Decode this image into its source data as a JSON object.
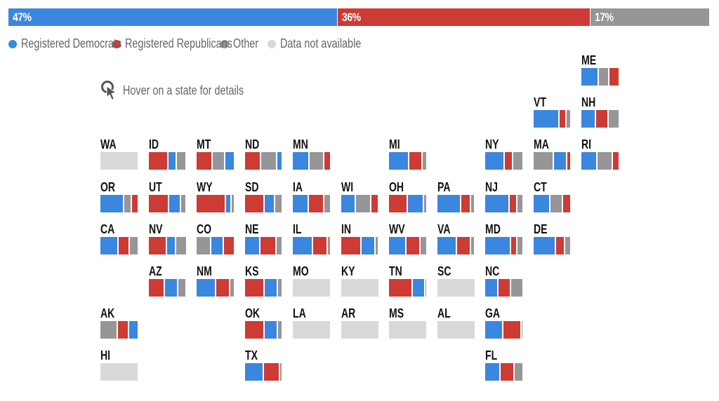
{
  "colors": {
    "democrats": "#3b86de",
    "republicans": "#cc3b34",
    "other": "#969696",
    "not_available": "#d9d9d9"
  },
  "national": [
    {
      "party": "democrats",
      "value": 47,
      "label": "47%"
    },
    {
      "party": "republicans",
      "value": 36,
      "label": "36%"
    },
    {
      "party": "other",
      "value": 17,
      "label": "17%"
    }
  ],
  "legend": [
    {
      "key": "democrats",
      "label": "Registered Democrats"
    },
    {
      "key": "republicans",
      "label": "Registered Republicans"
    },
    {
      "key": "other",
      "label": "Other"
    },
    {
      "key": "not_available",
      "label": "Data not available"
    }
  ],
  "hint": {
    "icon": "cursor-click-icon",
    "label": "Hover on a state for details"
  },
  "chart_data": {
    "type": "bar",
    "title": "",
    "subtype": "stacked-bar tile grid map",
    "series_names": [
      "Registered Democrats",
      "Registered Republicans",
      "Other"
    ],
    "national_totals": {
      "democrats": 47,
      "republicans": 36,
      "other": 17
    },
    "states": [
      {
        "abbr": "ME",
        "row": 0,
        "col": 10,
        "d": 48,
        "r": 24,
        "o": 28
      },
      {
        "abbr": "VT",
        "row": 1,
        "col": 9,
        "d": 70,
        "r": 20,
        "o": 10
      },
      {
        "abbr": "NH",
        "row": 1,
        "col": 10,
        "d": 39,
        "r": 35,
        "o": 26
      },
      {
        "abbr": "WA",
        "row": 2,
        "col": 0,
        "na": true
      },
      {
        "abbr": "ID",
        "row": 2,
        "col": 1,
        "d": 23,
        "r": 54,
        "o": 23
      },
      {
        "abbr": "MT",
        "row": 2,
        "col": 2,
        "d": 22,
        "r": 43,
        "o": 35
      },
      {
        "abbr": "ND",
        "row": 2,
        "col": 3,
        "d": 12,
        "r": 44,
        "o": 44
      },
      {
        "abbr": "MN",
        "row": 2,
        "col": 4,
        "d": 45,
        "r": 16,
        "o": 39
      },
      {
        "abbr": "MI",
        "row": 2,
        "col": 6,
        "d": 54,
        "r": 36,
        "o": 10
      },
      {
        "abbr": "NY",
        "row": 2,
        "col": 8,
        "d": 52,
        "r": 24,
        "o": 24
      },
      {
        "abbr": "MA",
        "row": 2,
        "col": 9,
        "d": 35,
        "r": 9,
        "o": 56
      },
      {
        "abbr": "RI",
        "row": 2,
        "col": 10,
        "d": 44,
        "r": 16,
        "o": 40
      },
      {
        "abbr": "OR",
        "row": 3,
        "col": 0,
        "d": 64,
        "r": 16,
        "o": 20
      },
      {
        "abbr": "UT",
        "row": 3,
        "col": 1,
        "d": 32,
        "r": 56,
        "o": 12
      },
      {
        "abbr": "WY",
        "row": 3,
        "col": 2,
        "d": 15,
        "r": 79,
        "o": 6
      },
      {
        "abbr": "SD",
        "row": 3,
        "col": 3,
        "d": 28,
        "r": 54,
        "o": 18
      },
      {
        "abbr": "IA",
        "row": 3,
        "col": 4,
        "d": 43,
        "r": 41,
        "o": 16
      },
      {
        "abbr": "WI",
        "row": 3,
        "col": 5,
        "d": 41,
        "r": 18,
        "o": 41
      },
      {
        "abbr": "OH",
        "row": 3,
        "col": 6,
        "d": 44,
        "r": 50,
        "o": 6
      },
      {
        "abbr": "PA",
        "row": 3,
        "col": 7,
        "d": 66,
        "r": 26,
        "o": 8
      },
      {
        "abbr": "NJ",
        "row": 3,
        "col": 8,
        "d": 66,
        "r": 20,
        "o": 14
      },
      {
        "abbr": "CT",
        "row": 3,
        "col": 9,
        "d": 47,
        "r": 20,
        "o": 33
      },
      {
        "abbr": "CA",
        "row": 4,
        "col": 0,
        "d": 49,
        "r": 31,
        "o": 20
      },
      {
        "abbr": "NV",
        "row": 4,
        "col": 1,
        "d": 25,
        "r": 50,
        "o": 25
      },
      {
        "abbr": "CO",
        "row": 4,
        "col": 2,
        "d": 34,
        "r": 26,
        "o": 40
      },
      {
        "abbr": "NE",
        "row": 4,
        "col": 3,
        "d": 43,
        "r": 43,
        "o": 14
      },
      {
        "abbr": "IL",
        "row": 4,
        "col": 4,
        "d": 55,
        "r": 39,
        "o": 6
      },
      {
        "abbr": "IN",
        "row": 4,
        "col": 5,
        "d": 38,
        "r": 56,
        "o": 6
      },
      {
        "abbr": "WV",
        "row": 4,
        "col": 6,
        "d": 47,
        "r": 37,
        "o": 16
      },
      {
        "abbr": "VA",
        "row": 4,
        "col": 7,
        "d": 53,
        "r": 39,
        "o": 8
      },
      {
        "abbr": "MD",
        "row": 4,
        "col": 8,
        "d": 69,
        "r": 17,
        "o": 14
      },
      {
        "abbr": "DE",
        "row": 4,
        "col": 9,
        "d": 62,
        "r": 24,
        "o": 14
      },
      {
        "abbr": "AZ",
        "row": 5,
        "col": 1,
        "d": 35,
        "r": 45,
        "o": 20
      },
      {
        "abbr": "NM",
        "row": 5,
        "col": 2,
        "d": 53,
        "r": 37,
        "o": 10
      },
      {
        "abbr": "KS",
        "row": 5,
        "col": 3,
        "d": 37,
        "r": 53,
        "o": 10
      },
      {
        "abbr": "MO",
        "row": 5,
        "col": 4,
        "na": true
      },
      {
        "abbr": "KY",
        "row": 5,
        "col": 5,
        "na": true
      },
      {
        "abbr": "TN",
        "row": 5,
        "col": 6,
        "d": 34,
        "r": 64,
        "o": 2
      },
      {
        "abbr": "SC",
        "row": 5,
        "col": 7,
        "na": true
      },
      {
        "abbr": "NC",
        "row": 5,
        "col": 8,
        "d": 36,
        "r": 34,
        "o": 30
      },
      {
        "abbr": "AK",
        "row": 6,
        "col": 0,
        "d": 23,
        "r": 29,
        "o": 48
      },
      {
        "abbr": "OK",
        "row": 6,
        "col": 3,
        "d": 37,
        "r": 53,
        "o": 10
      },
      {
        "abbr": "LA",
        "row": 6,
        "col": 4,
        "na": true
      },
      {
        "abbr": "AR",
        "row": 6,
        "col": 5,
        "na": true
      },
      {
        "abbr": "MS",
        "row": 6,
        "col": 6,
        "na": true
      },
      {
        "abbr": "AL",
        "row": 6,
        "col": 7,
        "na": true
      },
      {
        "abbr": "GA",
        "row": 6,
        "col": 8,
        "d": 49,
        "r": 49,
        "o": 2
      },
      {
        "abbr": "HI",
        "row": 7,
        "col": 0,
        "na": true
      },
      {
        "abbr": "TX",
        "row": 7,
        "col": 3,
        "d": 51,
        "r": 45,
        "o": 4
      },
      {
        "abbr": "FL",
        "row": 7,
        "col": 8,
        "d": 42,
        "r": 38,
        "o": 20
      }
    ]
  }
}
